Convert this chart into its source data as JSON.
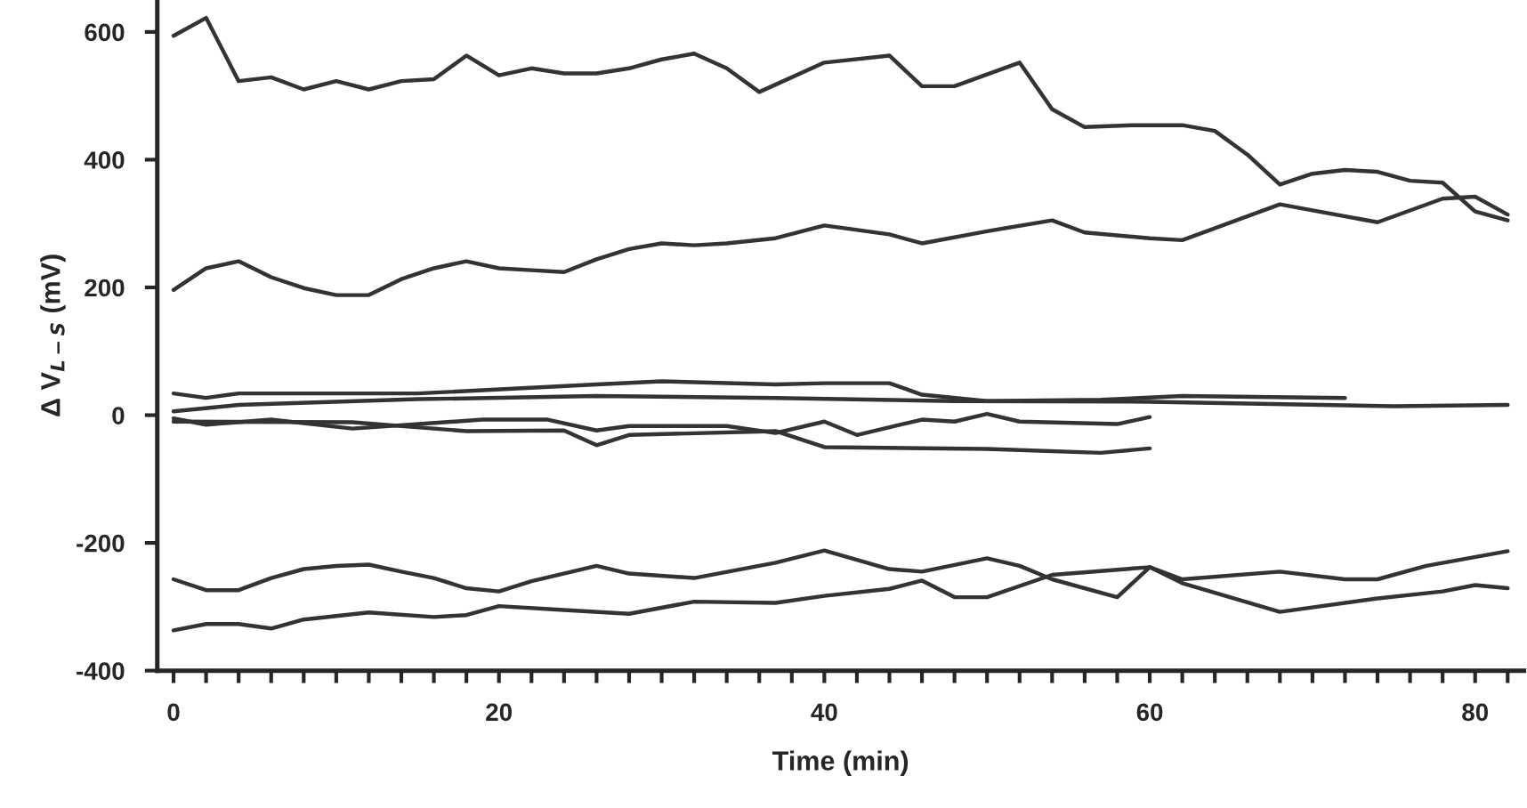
{
  "chart_data": {
    "type": "line",
    "xlabel": "Time (min)",
    "ylabel": "Δ V$_{L−S}$ (mV)",
    "xlim": [
      -1,
      83
    ],
    "ylim": [
      -400,
      650
    ],
    "xticks": [
      0,
      {
        "value": 2,
        "label": null
      },
      {
        "value": 4,
        "label": null
      },
      {
        "value": 6,
        "label": null
      },
      {
        "value": 8,
        "label": null
      },
      {
        "value": 10,
        "label": null
      },
      {
        "value": 12,
        "label": null
      },
      {
        "value": 14,
        "label": null
      },
      {
        "value": 16,
        "label": null
      },
      {
        "value": 18,
        "label": null
      },
      20,
      {
        "value": 22,
        "label": null
      },
      {
        "value": 24,
        "label": null
      },
      {
        "value": 26,
        "label": null
      },
      {
        "value": 28,
        "label": null
      },
      {
        "value": 30,
        "label": null
      },
      {
        "value": 32,
        "label": null
      },
      {
        "value": 34,
        "label": null
      },
      {
        "value": 36,
        "label": null
      },
      {
        "value": 38,
        "label": null
      },
      40,
      {
        "value": 42,
        "label": null
      },
      {
        "value": 44,
        "label": null
      },
      {
        "value": 46,
        "label": null
      },
      {
        "value": 48,
        "label": null
      },
      {
        "value": 50,
        "label": null
      },
      {
        "value": 52,
        "label": null
      },
      {
        "value": 54,
        "label": null
      },
      {
        "value": 56,
        "label": null
      },
      {
        "value": 58,
        "label": null
      },
      60,
      {
        "value": 62,
        "label": null
      },
      {
        "value": 64,
        "label": null
      },
      {
        "value": 66,
        "label": null
      },
      {
        "value": 68,
        "label": null
      },
      {
        "value": 70,
        "label": null
      },
      {
        "value": 72,
        "label": null
      },
      {
        "value": 74,
        "label": null
      },
      {
        "value": 76,
        "label": null
      },
      {
        "value": 78,
        "label": null
      },
      80,
      {
        "value": 82,
        "label": null
      }
    ],
    "yticks": [
      -400,
      -200,
      0,
      200,
      400,
      600
    ],
    "grid": false,
    "legend": false,
    "marker": "none",
    "line_style": "solid",
    "series": [
      {
        "color": "#333333",
        "x": [
          0,
          2,
          4,
          6,
          8,
          10,
          12,
          14,
          16,
          18,
          20,
          22,
          24,
          26,
          28,
          30,
          32,
          34,
          36,
          40,
          44,
          46,
          48,
          52,
          54,
          56,
          59,
          62,
          64,
          66,
          68,
          70,
          72,
          74,
          76,
          78,
          80,
          82
        ],
        "values": [
          594,
          622,
          523,
          529,
          510,
          523,
          510,
          523,
          526,
          563,
          532,
          543,
          535,
          535,
          543,
          557,
          566,
          543,
          506,
          552,
          563,
          515,
          515,
          552,
          479,
          451,
          454,
          454,
          445,
          408,
          361,
          378,
          384,
          381,
          367,
          364,
          319,
          305
        ]
      },
      {
        "color": "#333333",
        "x": [
          0,
          2,
          4,
          6,
          8,
          10,
          12,
          14,
          16,
          18,
          20,
          22,
          24,
          26,
          28,
          30,
          32,
          34,
          37,
          40,
          44,
          46,
          50,
          54,
          56,
          60,
          62,
          68,
          74,
          78,
          80,
          82
        ],
        "values": [
          196,
          230,
          241,
          216,
          199,
          188,
          188,
          213,
          230,
          241,
          230,
          227,
          224,
          244,
          260,
          269,
          266,
          269,
          277,
          297,
          283,
          269,
          288,
          305,
          286,
          277,
          274,
          330,
          302,
          339,
          342,
          314
        ]
      },
      {
        "color": "#333333",
        "x": [
          0,
          2,
          4,
          15,
          26,
          30,
          37,
          40,
          44,
          46,
          50,
          57,
          62,
          72
        ],
        "values": [
          34,
          27,
          34,
          34,
          48,
          53,
          48,
          50,
          50,
          32,
          22,
          24,
          30,
          27
        ]
      },
      {
        "color": "#333333",
        "x": [
          0,
          4,
          15,
          26,
          37,
          48,
          60,
          75,
          82
        ],
        "values": [
          6,
          16,
          25,
          30,
          27,
          22,
          21,
          14,
          16
        ]
      },
      {
        "color": "#333333",
        "x": [
          0,
          2,
          6,
          11,
          19,
          23,
          26,
          28,
          34,
          37,
          40,
          42,
          46,
          48,
          50,
          52,
          58,
          60
        ],
        "values": [
          -5,
          -15,
          -7,
          -21,
          -7,
          -7,
          -24,
          -17,
          -17,
          -28,
          -10,
          -31,
          -7,
          -10,
          2,
          -10,
          -14,
          -3
        ]
      },
      {
        "color": "#333333",
        "x": [
          0,
          11,
          18,
          24,
          26,
          28,
          37,
          40,
          50,
          57,
          60
        ],
        "values": [
          -10,
          -11,
          -25,
          -24,
          -47,
          -31,
          -25,
          -50,
          -53,
          -59,
          -52
        ]
      },
      {
        "color": "#333333",
        "x": [
          0,
          2,
          4,
          6,
          8,
          10,
          12,
          14,
          16,
          18,
          20,
          22,
          26,
          28,
          32,
          37,
          40,
          44,
          46,
          50,
          52,
          54,
          58,
          60,
          62,
          68,
          74,
          78,
          80,
          82
        ],
        "values": [
          -257,
          -274,
          -274,
          -255,
          -241,
          -236,
          -234,
          -245,
          -255,
          -271,
          -276,
          -260,
          -236,
          -248,
          -255,
          -231,
          -212,
          -241,
          -245,
          -224,
          -236,
          -257,
          -285,
          -238,
          -263,
          -308,
          -287,
          -276,
          -266,
          -271
        ]
      },
      {
        "color": "#333333",
        "x": [
          0,
          2,
          4,
          6,
          8,
          12,
          16,
          18,
          20,
          24,
          28,
          32,
          37,
          40,
          44,
          46,
          48,
          50,
          54,
          60,
          62,
          68,
          72,
          74,
          77,
          82
        ],
        "values": [
          -337,
          -327,
          -327,
          -334,
          -320,
          -309,
          -316,
          -313,
          -299,
          -305,
          -311,
          -292,
          -294,
          -283,
          -272,
          -259,
          -285,
          -285,
          -250,
          -238,
          -257,
          -245,
          -257,
          -257,
          -236,
          -213
        ]
      }
    ]
  }
}
